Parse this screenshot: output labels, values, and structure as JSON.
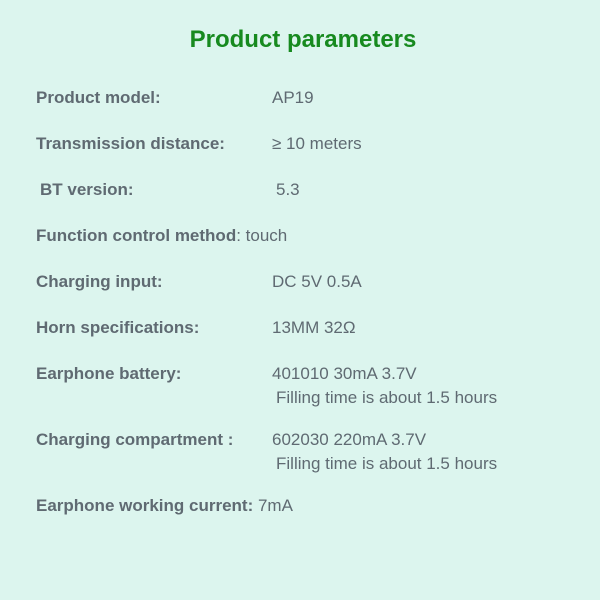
{
  "colors": {
    "background": "#dcf5ee",
    "title": "#178a1f",
    "label": "#5f6a72",
    "value": "#5f6a72"
  },
  "title": "Product parameters",
  "params": {
    "product_model": {
      "label": "Product model:",
      "value": "AP19"
    },
    "transmission_distance": {
      "label": "Transmission distance:",
      "value": "≥ 10 meters"
    },
    "bt_version": {
      "label": "BT version:",
      "value": "5.3"
    },
    "function_control": {
      "label": "Function control method",
      "value": ": touch"
    },
    "charging_input": {
      "label": "Charging input:",
      "value": "DC 5V 0.5A"
    },
    "horn_spec": {
      "label": "Horn specifications:",
      "value": "13MM 32Ω"
    },
    "earphone_battery": {
      "label": "Earphone battery:",
      "value": "401010 30mA 3.7V",
      "sub": "Filling time is about 1.5 hours"
    },
    "charging_compartment": {
      "label": "Charging compartment :",
      "value": "602030 220mA 3.7V",
      "sub": "Filling time is about 1.5 hours"
    },
    "working_current": {
      "label": "Earphone working current:",
      "value": " 7mA"
    }
  }
}
